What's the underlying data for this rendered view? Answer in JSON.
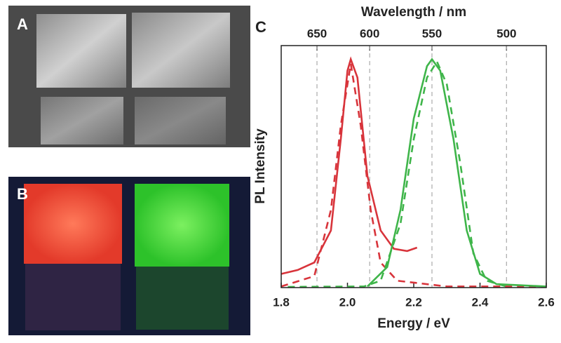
{
  "panels": {
    "a": "A",
    "b": "B"
  },
  "chart_data": {
    "type": "line",
    "panel_label": "C",
    "x_label": "Energy  / eV",
    "y_label": "PL Intensity",
    "x2_label": "Wavelength / nm",
    "xlim": [
      1.8,
      2.6
    ],
    "ylim": [
      0,
      1.06
    ],
    "xticks": [
      1.8,
      {
        "value": 2,
        "label": "2.0"
      },
      2.2,
      2.4,
      2.6
    ],
    "x2ticks": [
      {
        "value": 1.908,
        "label": "650"
      },
      {
        "value": 2.067,
        "label": "600"
      },
      {
        "value": 2.255,
        "label": "550"
      },
      {
        "value": 2.48,
        "label": "500"
      }
    ],
    "grid": true,
    "series": [
      {
        "color": "#d8343b",
        "dash": false,
        "x": [
          1.8,
          1.85,
          1.9,
          1.95,
          1.98,
          2.0,
          2.01,
          2.03,
          2.06,
          2.1,
          2.14,
          2.18,
          2.21
        ],
        "values": [
          0.06,
          0.077,
          0.11,
          0.25,
          0.65,
          0.95,
          1.0,
          0.92,
          0.49,
          0.25,
          0.17,
          0.16,
          0.175
        ]
      },
      {
        "color": "#d8343b",
        "dash": true,
        "x": [
          1.8,
          1.9,
          1.95,
          1.98,
          2.01,
          2.04,
          2.07,
          2.1,
          2.15,
          2.3,
          2.6
        ],
        "values": [
          0.005,
          0.05,
          0.34,
          0.71,
          0.98,
          0.71,
          0.34,
          0.11,
          0.03,
          0.005,
          0.005
        ]
      },
      {
        "color": "#3fb54a",
        "dash": false,
        "x": [
          2.06,
          2.12,
          2.16,
          2.2,
          2.24,
          2.255,
          2.28,
          2.32,
          2.36,
          2.4,
          2.45,
          2.6
        ],
        "values": [
          0.005,
          0.09,
          0.34,
          0.74,
          0.97,
          1.0,
          0.95,
          0.65,
          0.25,
          0.06,
          0.015,
          0.005
        ]
      },
      {
        "color": "#3fb54a",
        "dash": true,
        "x": [
          1.82,
          2.05,
          2.1,
          2.16,
          2.2,
          2.24,
          2.27,
          2.3,
          2.34,
          2.38,
          2.42,
          2.48
        ],
        "values": [
          0.003,
          0.005,
          0.03,
          0.28,
          0.65,
          0.92,
          0.99,
          0.89,
          0.55,
          0.15,
          0.03,
          0.005
        ]
      }
    ]
  }
}
